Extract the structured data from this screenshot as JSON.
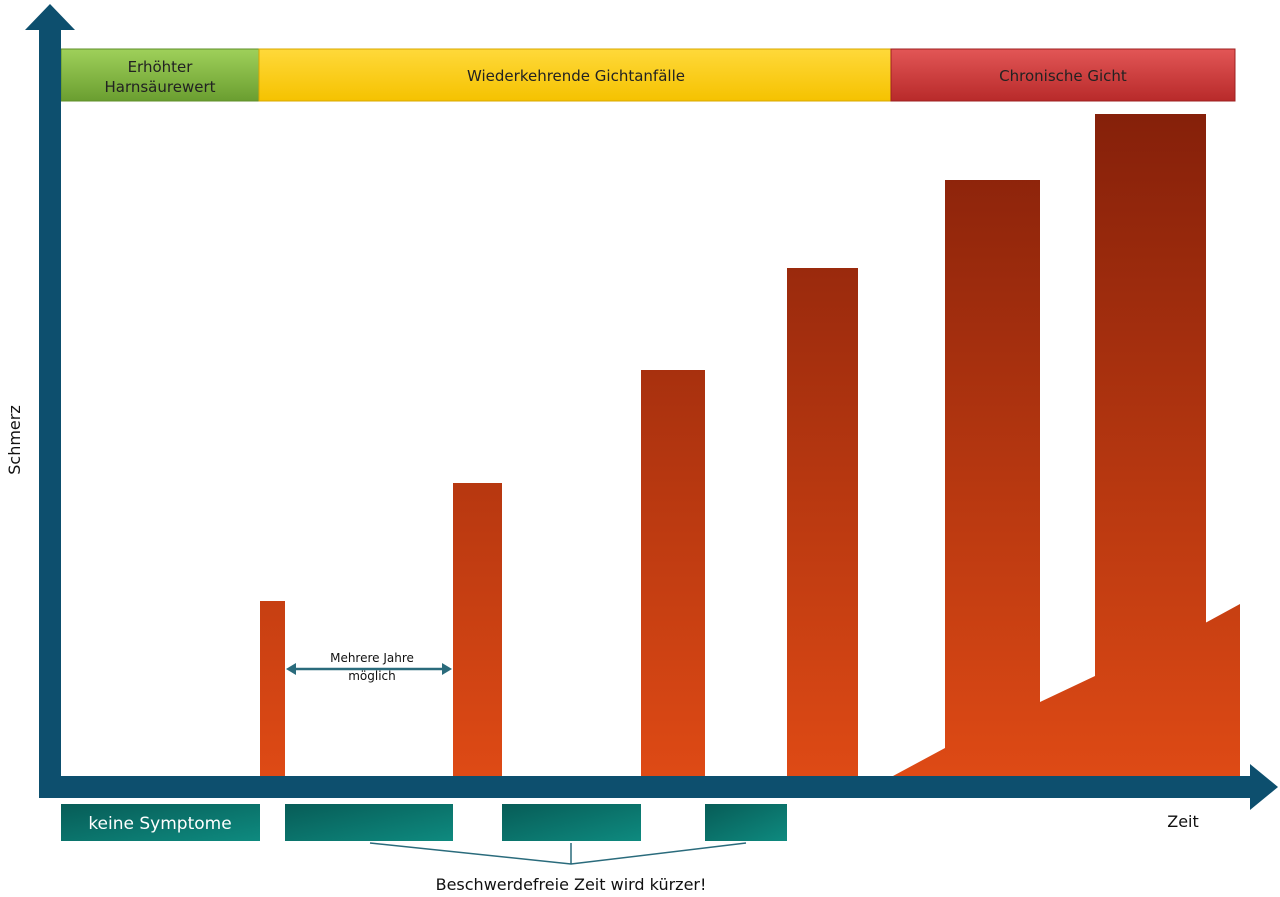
{
  "axes": {
    "y_label": "Schmerz",
    "x_label": "Zeit"
  },
  "phases": [
    {
      "label_lines": [
        "Erhöhter",
        "Harnsäurewert"
      ],
      "color": "#7bb33c"
    },
    {
      "label_lines": [
        "Wiederkehrende Gichtanfälle"
      ],
      "color": "#ffcc00"
    },
    {
      "label_lines": [
        "Chronische Gicht"
      ],
      "color": "#cc3333"
    }
  ],
  "annotation": {
    "lines": [
      "Mehrere Jahre",
      "möglich"
    ]
  },
  "symptom_free": {
    "first_label": "keine Symptome",
    "caption": "Beschwerdefreie Zeit wird kürzer!"
  },
  "colors": {
    "axis": "#0d4f6e",
    "bar_top": "#85200a",
    "bar_bottom": "#de4a15",
    "teal": "#0c8578",
    "bracket": "#2a6b7c"
  }
}
